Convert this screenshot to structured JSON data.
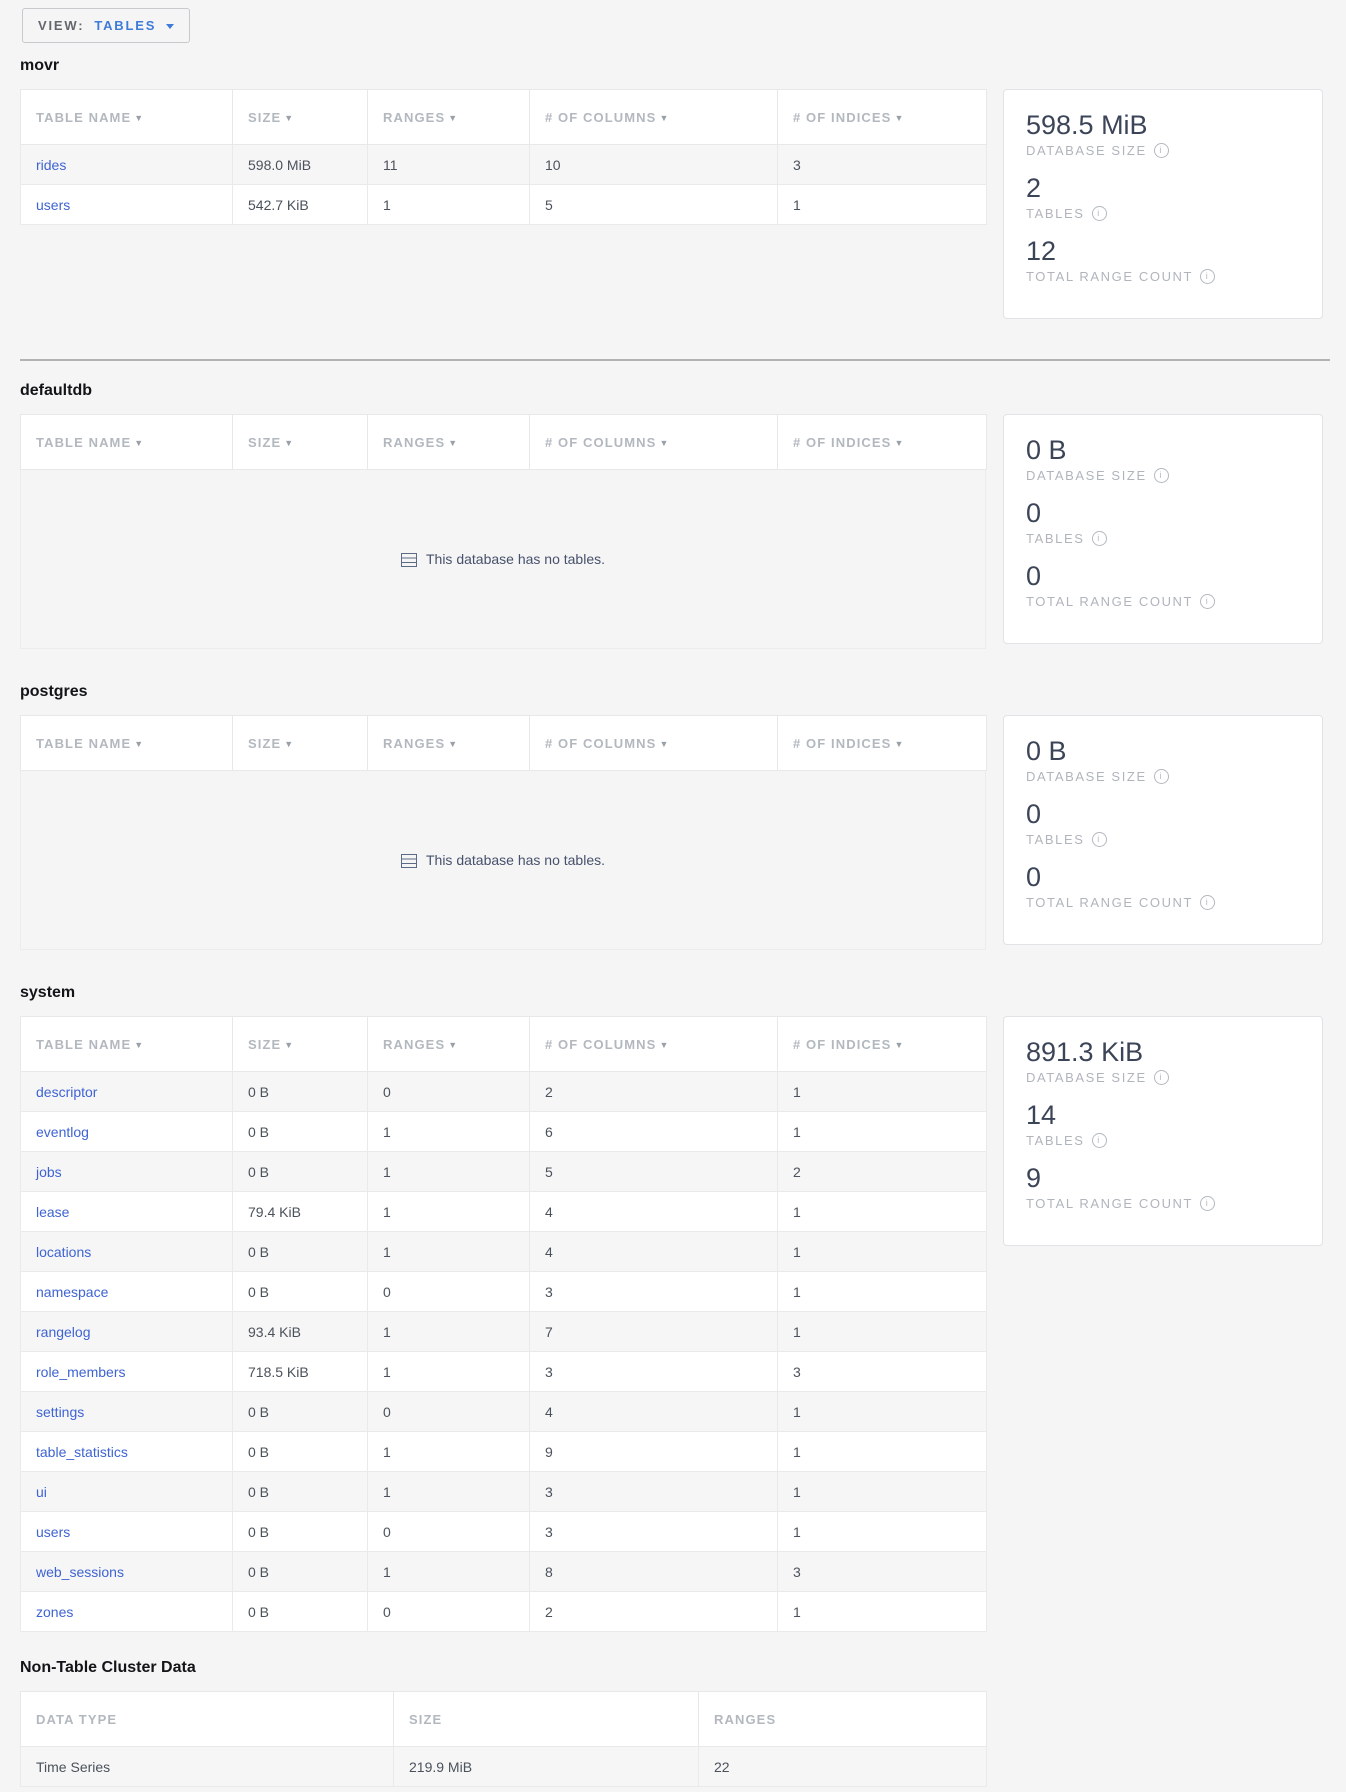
{
  "view_control": {
    "label": "VIEW:",
    "value": "TABLES"
  },
  "icons": {
    "sort_caret": "▼",
    "info": "i"
  },
  "table_headers": [
    "TABLE NAME",
    "SIZE",
    "RANGES",
    "# OF COLUMNS",
    "# OF INDICES"
  ],
  "empty_message": "This database has no tables.",
  "stats_labels": {
    "size": "DATABASE SIZE",
    "tables": "TABLES",
    "ranges": "TOTAL RANGE COUNT"
  },
  "databases": [
    {
      "name": "movr",
      "rows": [
        [
          "rides",
          "598.0 MiB",
          "11",
          "10",
          "3"
        ],
        [
          "users",
          "542.7 KiB",
          "1",
          "5",
          "1"
        ]
      ],
      "summary": {
        "size": "598.5 MiB",
        "tables": "2",
        "ranges": "12"
      }
    },
    {
      "name": "defaultdb",
      "rows": [],
      "summary": {
        "size": "0 B",
        "tables": "0",
        "ranges": "0"
      }
    },
    {
      "name": "postgres",
      "rows": [],
      "summary": {
        "size": "0 B",
        "tables": "0",
        "ranges": "0"
      }
    },
    {
      "name": "system",
      "rows": [
        [
          "descriptor",
          "0 B",
          "0",
          "2",
          "1"
        ],
        [
          "eventlog",
          "0 B",
          "1",
          "6",
          "1"
        ],
        [
          "jobs",
          "0 B",
          "1",
          "5",
          "2"
        ],
        [
          "lease",
          "79.4 KiB",
          "1",
          "4",
          "1"
        ],
        [
          "locations",
          "0 B",
          "1",
          "4",
          "1"
        ],
        [
          "namespace",
          "0 B",
          "0",
          "3",
          "1"
        ],
        [
          "rangelog",
          "93.4 KiB",
          "1",
          "7",
          "1"
        ],
        [
          "role_members",
          "718.5 KiB",
          "1",
          "3",
          "3"
        ],
        [
          "settings",
          "0 B",
          "0",
          "4",
          "1"
        ],
        [
          "table_statistics",
          "0 B",
          "1",
          "9",
          "1"
        ],
        [
          "ui",
          "0 B",
          "1",
          "3",
          "1"
        ],
        [
          "users",
          "0 B",
          "0",
          "3",
          "1"
        ],
        [
          "web_sessions",
          "0 B",
          "1",
          "8",
          "3"
        ],
        [
          "zones",
          "0 B",
          "0",
          "2",
          "1"
        ]
      ],
      "summary": {
        "size": "891.3 KiB",
        "tables": "14",
        "ranges": "9"
      }
    }
  ],
  "non_table": {
    "title": "Non-Table Cluster Data",
    "headers": [
      "DATA TYPE",
      "SIZE",
      "RANGES"
    ],
    "rows": [
      [
        "Time Series",
        "219.9 MiB",
        "22"
      ]
    ]
  }
}
